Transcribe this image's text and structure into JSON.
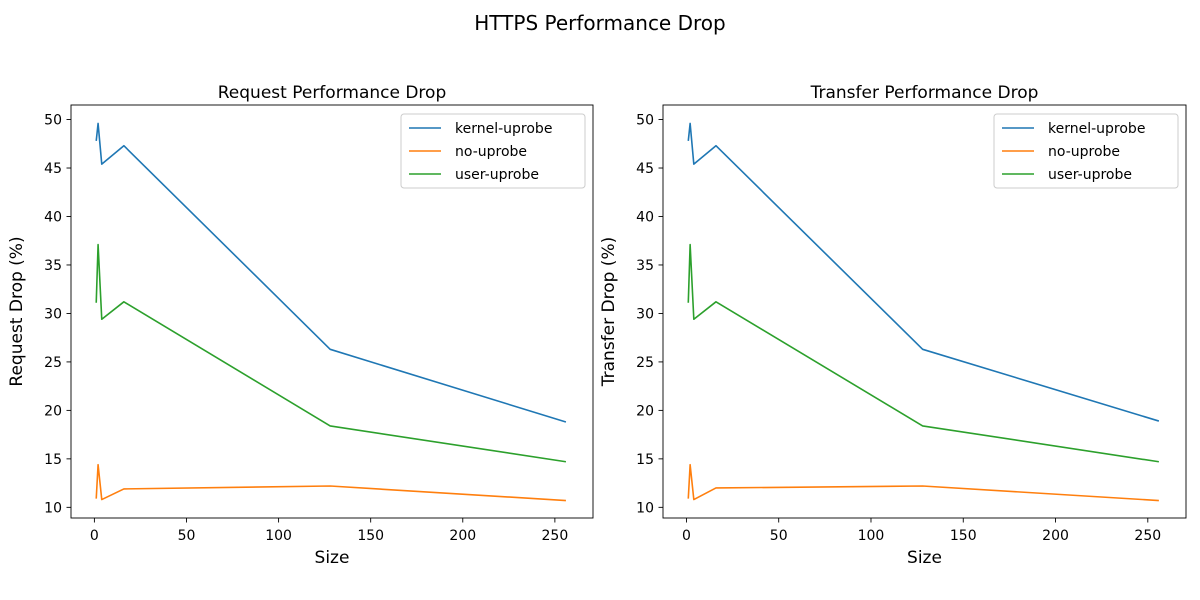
{
  "suptitle": "HTTPS Performance Drop",
  "colors": {
    "kernel-uprobe": "#1f77b4",
    "no-uprobe": "#ff7f0e",
    "user-uprobe": "#2ca02c"
  },
  "chart_data": [
    {
      "type": "line",
      "title": "Request Performance Drop",
      "xlabel": "Size",
      "ylabel": "Request Drop (%)",
      "xlim": [
        -12.7,
        270.7
      ],
      "ylim": [
        8.9,
        51.5
      ],
      "xticks": [
        0,
        50,
        100,
        150,
        200,
        250
      ],
      "yticks": [
        10,
        15,
        20,
        25,
        30,
        35,
        40,
        45,
        50
      ],
      "legend_position": "top-right",
      "x": [
        1,
        2,
        4,
        16,
        128,
        256
      ],
      "series": [
        {
          "name": "kernel-uprobe",
          "values": [
            47.8,
            49.6,
            45.4,
            47.3,
            26.3,
            18.8
          ]
        },
        {
          "name": "no-uprobe",
          "values": [
            10.9,
            14.4,
            10.8,
            11.9,
            12.2,
            10.7
          ]
        },
        {
          "name": "user-uprobe",
          "values": [
            31.1,
            37.1,
            29.4,
            31.2,
            18.4,
            14.7
          ]
        }
      ]
    },
    {
      "type": "line",
      "title": "Transfer Performance Drop",
      "xlabel": "Size",
      "ylabel": "Transfer Drop (%)",
      "xlim": [
        -12.7,
        270.7
      ],
      "ylim": [
        8.9,
        51.5
      ],
      "xticks": [
        0,
        50,
        100,
        150,
        200,
        250
      ],
      "yticks": [
        10,
        15,
        20,
        25,
        30,
        35,
        40,
        45,
        50
      ],
      "legend_position": "top-right",
      "x": [
        1,
        2,
        4,
        16,
        128,
        256
      ],
      "series": [
        {
          "name": "kernel-uprobe",
          "values": [
            47.8,
            49.6,
            45.4,
            47.3,
            26.3,
            18.9
          ]
        },
        {
          "name": "no-uprobe",
          "values": [
            10.9,
            14.4,
            10.8,
            12.0,
            12.2,
            10.7
          ]
        },
        {
          "name": "user-uprobe",
          "values": [
            31.1,
            37.1,
            29.4,
            31.2,
            18.4,
            14.7
          ]
        }
      ]
    }
  ]
}
